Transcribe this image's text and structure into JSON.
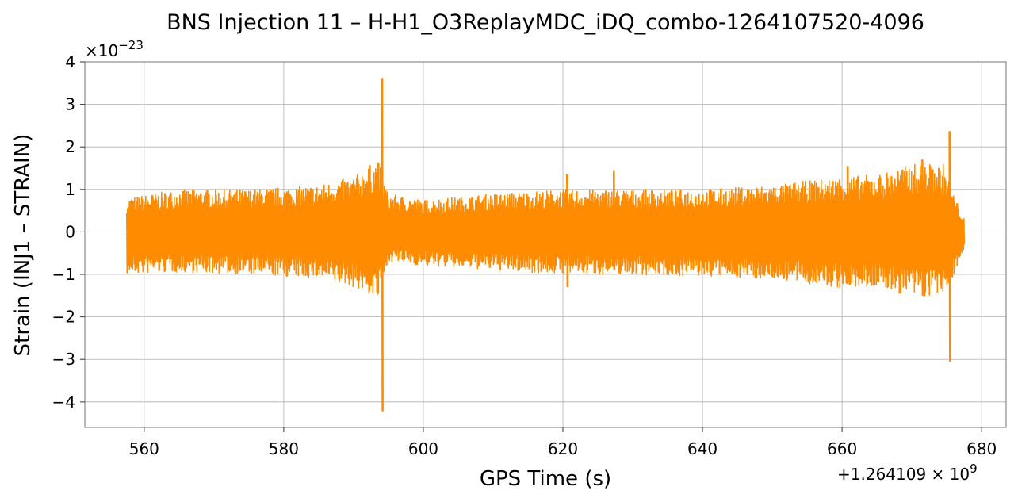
{
  "chart_data": {
    "type": "line",
    "title": "BNS Injection 11 – H-H1_O3ReplayMDC_iDQ_combo-1264107520-4096",
    "xlabel": "GPS Time (s)",
    "ylabel": "Strain (INJ1 – STRAIN)",
    "y_scale_label": "×10",
    "y_scale_exp": "−23",
    "x_offset_label": "+1.264109 × 10",
    "x_offset_exp": "9",
    "xlim": [
      551.5,
      683.5
    ],
    "ylim": [
      -4.6,
      4.0
    ],
    "grid": true,
    "legend": "none",
    "xticks": [
      560,
      580,
      600,
      620,
      640,
      660,
      680
    ],
    "yticks": [
      4,
      3,
      2,
      1,
      0,
      -1,
      -2,
      -3,
      -4
    ],
    "xtick_labels": [
      "560",
      "580",
      "600",
      "620",
      "640",
      "660",
      "680"
    ],
    "ytick_labels": [
      "4",
      "3",
      "2",
      "1",
      "0",
      "−1",
      "−2",
      "−3",
      "−4"
    ],
    "series": [
      {
        "color": "#ff8c00",
        "x_start": 557.5,
        "x_end": 677.5,
        "envelope": [
          {
            "x": 557.5,
            "upper": 0.8,
            "lower": -1.0
          },
          {
            "x": 565,
            "upper": 1.0,
            "lower": -0.95
          },
          {
            "x": 575,
            "upper": 1.0,
            "lower": -1.0
          },
          {
            "x": 585,
            "upper": 1.1,
            "lower": -1.1
          },
          {
            "x": 590,
            "upper": 1.3,
            "lower": -1.3
          },
          {
            "x": 593.5,
            "upper": 1.7,
            "lower": -1.6
          },
          {
            "x": 595,
            "upper": 0.9,
            "lower": -0.7
          },
          {
            "x": 600,
            "upper": 0.75,
            "lower": -0.8
          },
          {
            "x": 610,
            "upper": 0.9,
            "lower": -0.9
          },
          {
            "x": 620,
            "upper": 1.0,
            "lower": -1.0
          },
          {
            "x": 630,
            "upper": 1.0,
            "lower": -1.0
          },
          {
            "x": 640,
            "upper": 1.0,
            "lower": -1.05
          },
          {
            "x": 650,
            "upper": 1.1,
            "lower": -1.1
          },
          {
            "x": 660,
            "upper": 1.3,
            "lower": -1.35
          },
          {
            "x": 665,
            "upper": 1.35,
            "lower": -1.3
          },
          {
            "x": 670,
            "upper": 1.6,
            "lower": -1.55
          },
          {
            "x": 674.5,
            "upper": 1.6,
            "lower": -1.5
          },
          {
            "x": 676,
            "upper": 0.9,
            "lower": -1.0
          },
          {
            "x": 677.5,
            "upper": 0.3,
            "lower": -0.4
          }
        ],
        "spikes": [
          {
            "x": 594.1,
            "max": 3.62,
            "min": -4.22
          },
          {
            "x": 675.4,
            "max": 2.37,
            "min": -3.05
          },
          {
            "x": 660.8,
            "max": 1.55,
            "min": -1.2
          },
          {
            "x": 671.5,
            "max": 1.7,
            "min": -1.5
          },
          {
            "x": 627.3,
            "max": 1.45,
            "min": -0.9
          },
          {
            "x": 620.6,
            "max": 1.35,
            "min": -1.3
          }
        ]
      }
    ]
  }
}
